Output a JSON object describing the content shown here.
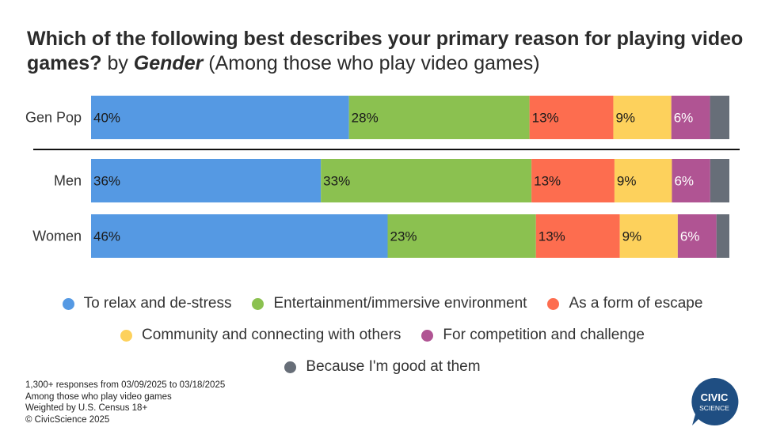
{
  "title": {
    "bold": "Which of the following best describes your primary reason for playing video games?",
    "by": "by",
    "group": "Gender",
    "note": "(Among those who play video games)"
  },
  "chart_data": {
    "type": "bar",
    "orientation": "horizontal-stacked-100",
    "categories": [
      "Gen Pop",
      "Men",
      "Women"
    ],
    "series": [
      {
        "name": "To relax and de-stress",
        "color": "#5599e3",
        "values": [
          40,
          36,
          46
        ],
        "labels": [
          "40%",
          "36%",
          "46%"
        ]
      },
      {
        "name": "Entertainment/immersive environment",
        "color": "#8bc150",
        "values": [
          28,
          33,
          23
        ],
        "labels": [
          "28%",
          "33%",
          "23%"
        ]
      },
      {
        "name": "As a form of escape",
        "color": "#fd6d4f",
        "values": [
          13,
          13,
          13
        ],
        "labels": [
          "13%",
          "13%",
          "13%"
        ]
      },
      {
        "name": "Community and connecting with others",
        "color": "#fdd15c",
        "values": [
          9,
          9,
          9
        ],
        "labels": [
          "9%",
          "9%",
          "9%"
        ]
      },
      {
        "name": "For competition and challenge",
        "color": "#b05493",
        "values": [
          6,
          6,
          6
        ],
        "labels": [
          "6%",
          "6%",
          "6%"
        ]
      },
      {
        "name": "Because I'm good at them",
        "color": "#676e78",
        "values": [
          3,
          3,
          2
        ],
        "labels": [
          "",
          "",
          ""
        ]
      }
    ],
    "xlim": [
      0,
      100
    ]
  },
  "footnote": [
    "1,300+ responses from 03/09/2025 to 03/18/2025",
    "Among those who play video games",
    "Weighted by U.S. Census 18+",
    "© CivicScience 2025"
  ],
  "logo": {
    "line1": "CIVIC",
    "line2": "SCIENCE",
    "color": "#1f4e82"
  }
}
